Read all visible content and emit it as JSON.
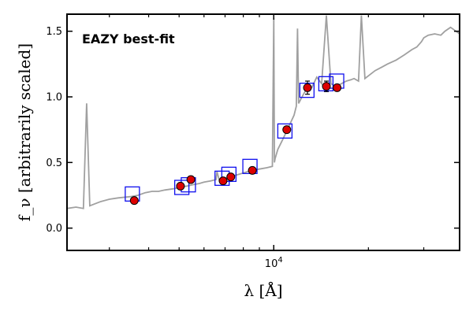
{
  "chart_data": {
    "type": "scatter",
    "title": "",
    "annotation": "EAZY best-fit",
    "annotation_color": "#ff0000",
    "xlabel": "λ [Å]",
    "ylabel": "f_ν [arbitrarily scaled]",
    "x_scale": "log",
    "xlim": [
      2200,
      39000
    ],
    "ylim": [
      -0.17,
      1.63
    ],
    "x_ticks": [
      {
        "value": 10000,
        "label": "10^4"
      }
    ],
    "y_ticks": [
      {
        "value": 0.0,
        "label": "0.0"
      },
      {
        "value": 0.5,
        "label": "0.5"
      },
      {
        "value": 1.0,
        "label": "1.0"
      },
      {
        "value": 1.5,
        "label": "1.5"
      }
    ],
    "grid": false,
    "colors": {
      "template": "#a0a0a0",
      "model_boxes": "#1010ee",
      "observed_points": "#dd0000",
      "point_edge": "#000000"
    },
    "series": [
      {
        "kind": "line",
        "x": [
          2200,
          2350,
          2480,
          2540,
          2600,
          2800,
          3000,
          3200,
          3500,
          3700,
          3900,
          4100,
          4300,
          4500,
          4800,
          5000,
          5300,
          5500,
          5800,
          6000,
          6300,
          6550,
          6600,
          6700,
          7000,
          7500,
          8000,
          8500,
          9000,
          9500,
          9900,
          10000,
          10050,
          10100,
          10300,
          10600,
          10800,
          11000,
          11300,
          11600,
          11800,
          11900,
          12000,
          12300,
          12700,
          13200,
          13700,
          14200,
          14700,
          15200,
          15800,
          16400,
          17000,
          17600,
          18000,
          18600,
          19000,
          19500,
          20000,
          21000,
          21800,
          22200,
          23000,
          24500,
          26000,
          27500,
          28500,
          29500,
          30000,
          31000,
          32500,
          34000,
          35000,
          36500,
          38000,
          39000
        ],
        "y": [
          0.15,
          0.16,
          0.15,
          0.95,
          0.17,
          0.2,
          0.22,
          0.23,
          0.24,
          0.25,
          0.27,
          0.28,
          0.28,
          0.29,
          0.3,
          0.31,
          0.32,
          0.33,
          0.34,
          0.35,
          0.36,
          0.37,
          0.43,
          0.37,
          0.38,
          0.4,
          0.42,
          0.44,
          0.45,
          0.46,
          0.47,
          1.6,
          0.5,
          0.53,
          0.6,
          0.66,
          0.7,
          0.74,
          0.8,
          0.86,
          0.93,
          1.52,
          0.95,
          1.0,
          1.06,
          1.07,
          1.15,
          1.1,
          1.62,
          1.1,
          1.08,
          1.1,
          1.12,
          1.13,
          1.14,
          1.12,
          1.62,
          1.14,
          1.16,
          1.2,
          1.22,
          1.23,
          1.25,
          1.28,
          1.32,
          1.36,
          1.38,
          1.42,
          1.45,
          1.47,
          1.48,
          1.47,
          1.5,
          1.53,
          1.5,
          1.48
        ]
      },
      {
        "kind": "boxes",
        "x": [
          3550,
          5100,
          5350,
          6850,
          7200,
          8400,
          10850,
          12750,
          14650,
          15850
        ],
        "y": [
          0.26,
          0.31,
          0.33,
          0.38,
          0.41,
          0.47,
          0.74,
          1.05,
          1.1,
          1.12
        ]
      },
      {
        "kind": "points",
        "x": [
          3600,
          5050,
          5450,
          6900,
          7300,
          8550,
          11000,
          12800,
          14700,
          15900
        ],
        "y": [
          0.21,
          0.32,
          0.37,
          0.36,
          0.39,
          0.44,
          0.75,
          1.07,
          1.08,
          1.07
        ],
        "yerr": [
          0.01,
          0.01,
          0.01,
          0.01,
          0.01,
          0.015,
          0.015,
          0.05,
          0.04,
          0.015
        ]
      }
    ]
  }
}
